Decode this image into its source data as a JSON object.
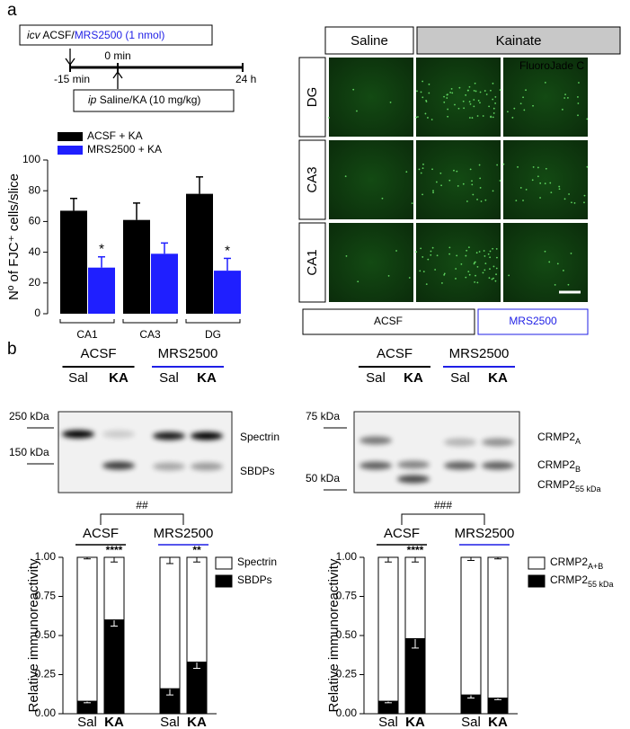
{
  "panel_a": {
    "label": "a",
    "timeline": {
      "icv": "icv",
      "treatment_1": "ACSF/",
      "treatment_2": "MRS2500 (1 nmol)",
      "t0": "0 min",
      "t_start": "-15 min",
      "t_end": "24 h",
      "ip": "ip",
      "treatment_ip": "Saline/KA (10 mg/kg)"
    },
    "micrographs": {
      "headers": [
        "Saline",
        "Kainate"
      ],
      "rows": [
        "DG",
        "CA3",
        "CA1"
      ],
      "footers": [
        "ACSF",
        "MRS2500"
      ],
      "stain": "FluoroJade C"
    }
  },
  "panel_b": {
    "label": "b",
    "blots": [
      {
        "groups": [
          "ACSF",
          "MRS2500"
        ],
        "lanes": [
          "Sal",
          "KA",
          "Sal",
          "KA"
        ],
        "markers": [
          "250 kDa",
          "150 kDa"
        ],
        "bands": [
          {
            "text": "Spectrin"
          },
          {
            "text": "SBDPs"
          }
        ]
      },
      {
        "groups": [
          "ACSF",
          "MRS2500"
        ],
        "lanes": [
          "Sal",
          "KA",
          "Sal",
          "KA"
        ],
        "markers": [
          "75 kDa",
          "50 kDa"
        ],
        "bands": [
          {
            "text": "CRMP2",
            "sub": "A"
          },
          {
            "text": "CRMP2",
            "sub": "B"
          },
          {
            "text": "CRMP2",
            "sub": "55 kDa"
          }
        ]
      }
    ]
  },
  "chart_data": [
    {
      "type": "bar",
      "ylabel": "Nº of FJC⁺ cells/slice",
      "categories": [
        "CA1",
        "CA3",
        "DG"
      ],
      "series": [
        {
          "name": "ACSF + KA",
          "color": "#000000",
          "values": [
            67,
            61,
            78
          ],
          "errors": [
            8,
            11,
            11
          ],
          "annotations": [
            null,
            null,
            null
          ]
        },
        {
          "name": "MRS2500 + KA",
          "color": "#1f1fff",
          "values": [
            30,
            39,
            28
          ],
          "errors": [
            7,
            7,
            8
          ],
          "annotations": [
            "*",
            null,
            "*"
          ]
        }
      ],
      "ylim": [
        0,
        100
      ],
      "yticks": [
        0,
        20,
        40,
        60,
        80,
        100
      ]
    },
    {
      "type": "stacked_bar",
      "ylabel": "Relative immunoreactivity",
      "categories": [
        "Sal",
        "KA",
        "Sal",
        "KA"
      ],
      "groups": [
        "ACSF",
        "MRS2500"
      ],
      "group_colors": [
        "#000000",
        "#1f1fe6"
      ],
      "comparison": "##",
      "annotations": [
        null,
        "****",
        null,
        "**"
      ],
      "series": [
        {
          "name": "SBDPs",
          "color": "#000000",
          "values": [
            0.08,
            0.6,
            0.16,
            0.33
          ],
          "errors": [
            0.01,
            0.04,
            0.04,
            0.04
          ]
        },
        {
          "name": "Spectrin",
          "color": "#ffffff",
          "values": [
            0.92,
            0.4,
            0.84,
            0.67
          ],
          "errors": [
            0.01,
            0.03,
            0.04,
            0.03
          ]
        }
      ],
      "ylim": [
        0,
        1
      ],
      "yticks": [
        {
          "value": 0,
          "label": "0.00"
        },
        {
          "value": 0.25,
          "label": "0.25"
        },
        {
          "value": 0.5,
          "label": "0.50"
        },
        {
          "value": 0.75,
          "label": "0.75"
        },
        {
          "value": 1,
          "label": "1.00"
        }
      ]
    },
    {
      "type": "stacked_bar",
      "ylabel": "Relative immunoreactivity",
      "categories": [
        "Sal",
        "KA",
        "Sal",
        "KA"
      ],
      "groups": [
        "ACSF",
        "MRS2500"
      ],
      "group_colors": [
        "#000000",
        "#1f1fe6"
      ],
      "comparison": "###",
      "annotations": [
        null,
        "****",
        null,
        null
      ],
      "series": [
        {
          "name": "CRMP2",
          "name_sub": "55 kDa",
          "color": "#000000",
          "values": [
            0.08,
            0.48,
            0.12,
            0.1
          ],
          "errors": [
            0.01,
            0.06,
            0.02,
            0.01
          ]
        },
        {
          "name": "CRMP2",
          "name_sub": "A+B",
          "color": "#ffffff",
          "values": [
            0.92,
            0.52,
            0.88,
            0.9
          ],
          "errors": [
            0.03,
            0.03,
            0.02,
            0.01
          ]
        }
      ],
      "ylim": [
        0,
        1
      ],
      "yticks": [
        {
          "value": 0,
          "label": "0.00"
        },
        {
          "value": 0.25,
          "label": "0.25"
        },
        {
          "value": 0.5,
          "label": "0.50"
        },
        {
          "value": 0.75,
          "label": "0.75"
        },
        {
          "value": 1,
          "label": "1.00"
        }
      ]
    }
  ]
}
